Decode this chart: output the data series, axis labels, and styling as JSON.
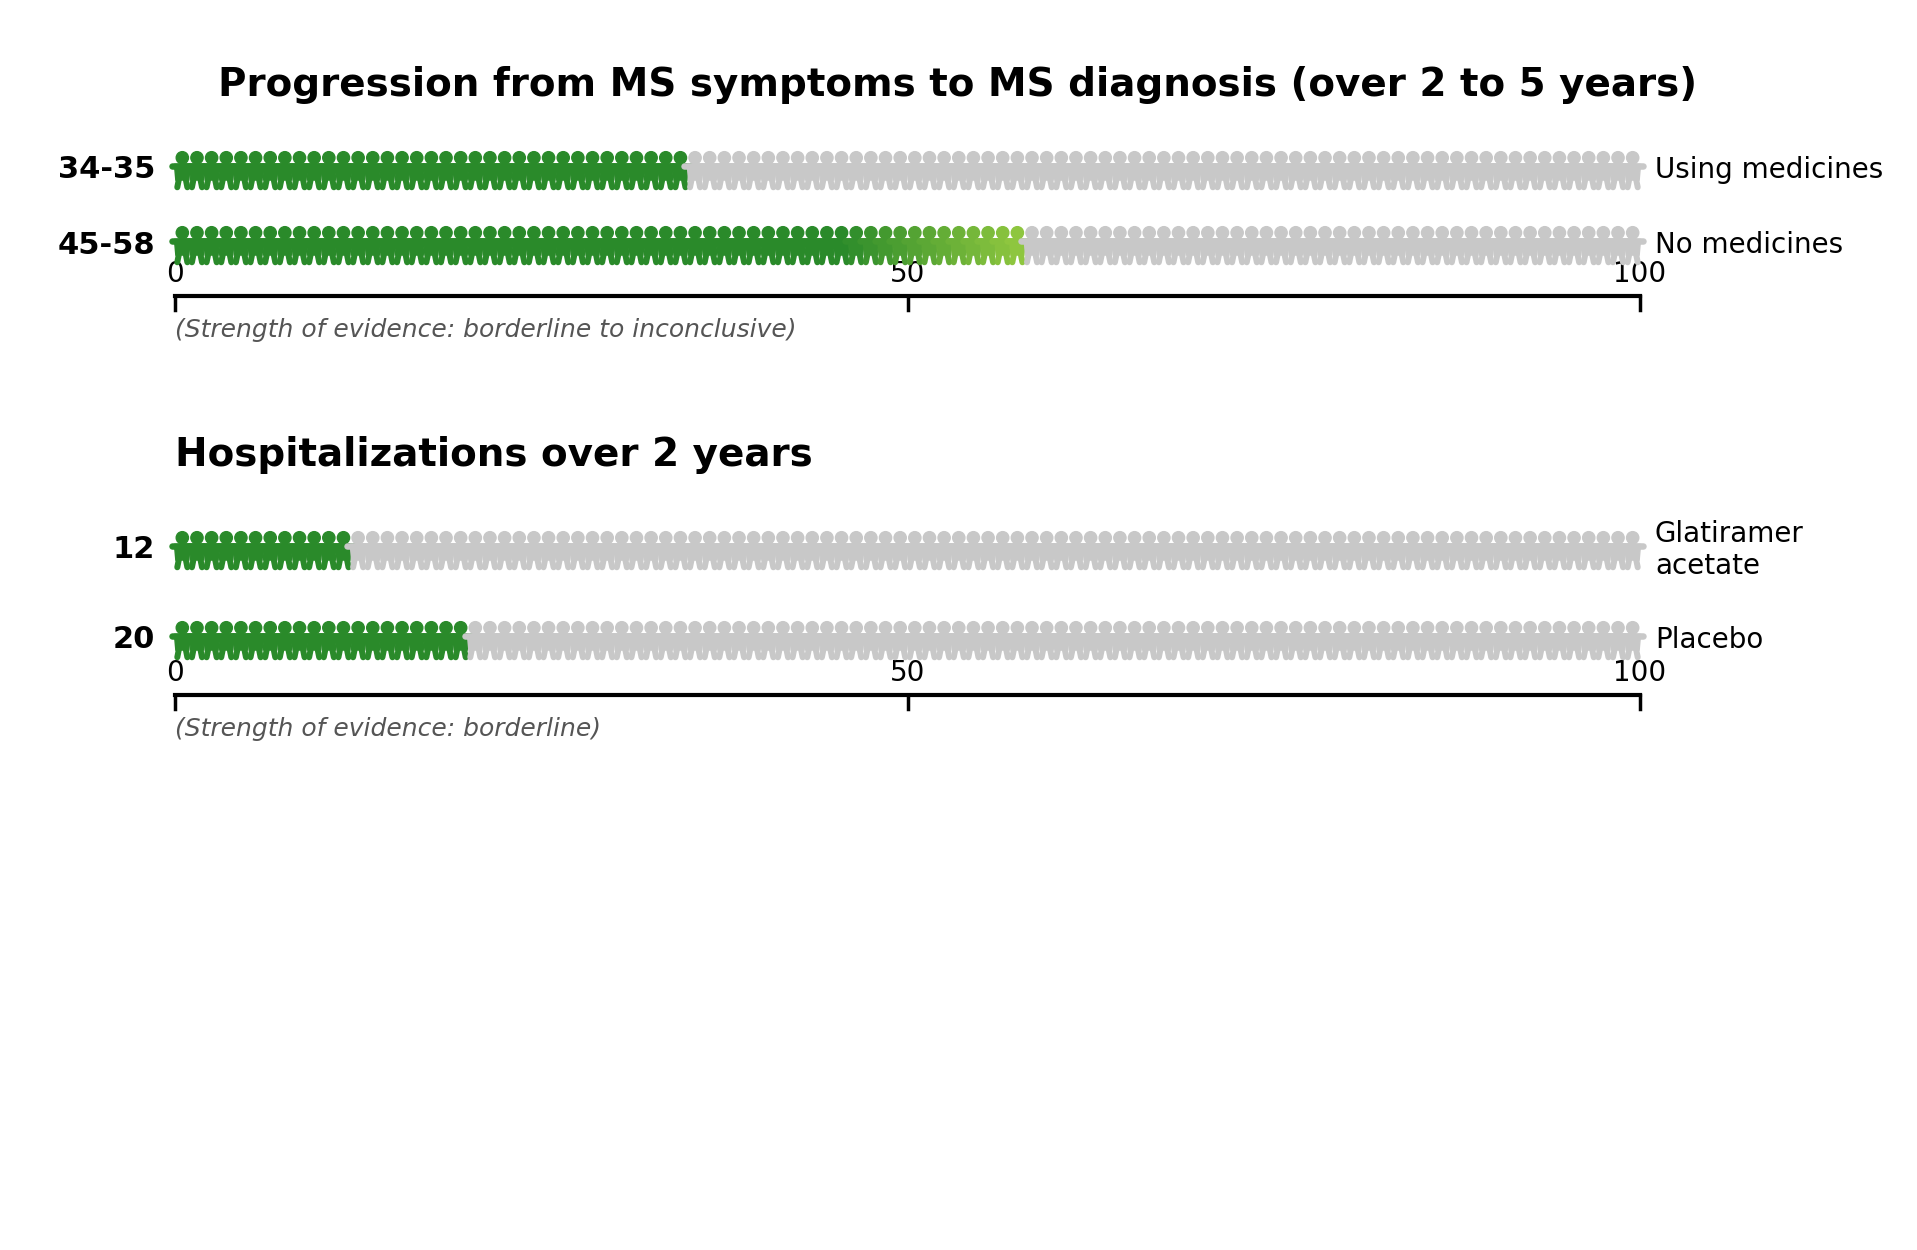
{
  "chart1_title": "Progression from MS symptoms to MS diagnosis (over 2 to 5 years)",
  "chart2_title": "Hospitalizations over 2 years",
  "chart1_rows": [
    {
      "label": "34-35",
      "dark_green": 34,
      "light_green": 1,
      "total": 100,
      "legend": "Using medicines"
    },
    {
      "label": "45-58",
      "dark_green": 45,
      "light_green": 13,
      "total": 100,
      "legend": "No medicines"
    }
  ],
  "chart2_rows": [
    {
      "label": "12",
      "dark_green": 12,
      "light_green": 0,
      "total": 100,
      "legend": "Glatiramer\nacetate"
    },
    {
      "label": "20",
      "dark_green": 20,
      "light_green": 0,
      "total": 100,
      "legend": "Placebo"
    }
  ],
  "color_dark_green": "#2a8a2a",
  "color_light_green": "#8ec63f",
  "color_gray": "#c8c8c8",
  "color_title": "#000000",
  "color_evidence": "#555555",
  "chart1_evidence": "(Strength of evidence: borderline to inconclusive)",
  "chart2_evidence": "(Strength of evidence: borderline)",
  "axis_ticks": [
    0,
    50,
    100
  ],
  "bg_color": "#ffffff",
  "fig_width": 19.17,
  "fig_height": 12.5,
  "dpi": 100
}
